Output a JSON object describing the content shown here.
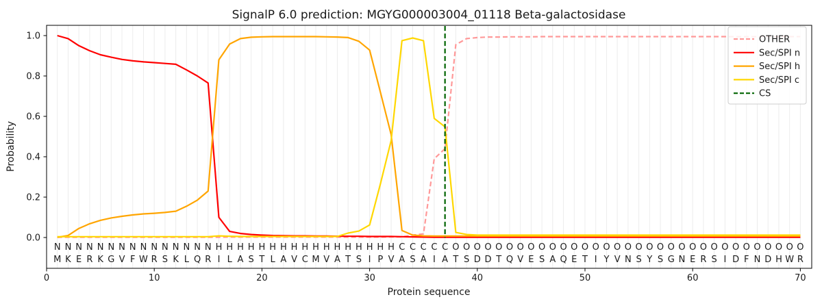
{
  "figure": {
    "title": "SignalP 6.0 prediction: MGYG000003004_01118 Beta-galactosidase",
    "xlabel": "Protein sequence",
    "ylabel": "Probability"
  },
  "axes": {
    "x_ticks": [
      0,
      10,
      20,
      30,
      40,
      50,
      60,
      70
    ],
    "y_ticks": [
      "0.0",
      "0.2",
      "0.4",
      "0.6",
      "0.8",
      "1.0"
    ],
    "grid": "vertical-per-residue"
  },
  "colors": {
    "other": "#ff9999",
    "sec_spi_n": "#ff0000",
    "sec_spi_h": "#ffa500",
    "sec_spi_c": "#ffd700",
    "cs": "#006400",
    "region_o_letter": "#8c8c8c",
    "sequence_letter": "#262626",
    "grid": "#ececec",
    "spine": "#000000",
    "legend_border": "#cccccc"
  },
  "legend": [
    {
      "label": "OTHER",
      "series": "other",
      "dashed": true
    },
    {
      "label": "Sec/SPI n",
      "series": "sec_spi_n",
      "dashed": false
    },
    {
      "label": "Sec/SPI h",
      "series": "sec_spi_h",
      "dashed": false
    },
    {
      "label": "Sec/SPI c",
      "series": "sec_spi_c",
      "dashed": false
    },
    {
      "label": "CS",
      "series": "cs",
      "dashed": true
    }
  ],
  "sequence": "MKERKGVFWRSKLQRILASTLAVCMVATSIPVASAIATSDDTQVESAQETIYVNSYSGNERSIDFNDHWR",
  "region_labels": "NNNNNNNNNNNNNNNHHHHHHHHHHHHHHHHHCCCCCOOOOOOOOOOOOOOOOOOOOOOOOOOOOOOOOO",
  "chart_data": {
    "type": "line",
    "title": "SignalP 6.0 prediction: MGYG000003004_01118 Beta-galactosidase",
    "xlabel": "Protein sequence",
    "ylabel": "Probability",
    "xlim": [
      0,
      71.2
    ],
    "ylim": [
      -0.15,
      1.05
    ],
    "legend_position": "upper right",
    "cs_position": 37,
    "x": [
      1,
      2,
      3,
      4,
      5,
      6,
      7,
      8,
      9,
      10,
      11,
      12,
      13,
      14,
      15,
      16,
      17,
      18,
      19,
      20,
      21,
      22,
      23,
      24,
      25,
      26,
      27,
      28,
      29,
      30,
      31,
      32,
      33,
      34,
      35,
      36,
      37,
      38,
      39,
      40,
      41,
      42,
      43,
      44,
      45,
      46,
      47,
      48,
      49,
      50,
      51,
      52,
      53,
      54,
      55,
      56,
      57,
      58,
      59,
      60,
      61,
      62,
      63,
      64,
      65,
      66,
      67,
      68,
      69,
      70
    ],
    "series": [
      {
        "name": "OTHER",
        "dashed": true,
        "values": [
          0.001,
          0.001,
          0.001,
          0.001,
          0.001,
          0.001,
          0.001,
          0.001,
          0.001,
          0.001,
          0.001,
          0.001,
          0.001,
          0.001,
          0.001,
          0.001,
          0.002,
          0.002,
          0.002,
          0.002,
          0.002,
          0.002,
          0.002,
          0.002,
          0.002,
          0.002,
          0.002,
          0.002,
          0.002,
          0.002,
          0.002,
          0.003,
          0.003,
          0.012,
          0.018,
          0.39,
          0.44,
          0.955,
          0.985,
          0.99,
          0.993,
          0.993,
          0.994,
          0.994,
          0.994,
          0.995,
          0.995,
          0.995,
          0.995,
          0.995,
          0.995,
          0.995,
          0.995,
          0.995,
          0.995,
          0.995,
          0.995,
          0.995,
          0.995,
          0.995,
          0.995,
          0.995,
          0.995,
          0.995,
          0.995,
          0.995,
          0.995,
          0.995,
          0.995,
          0.995
        ]
      },
      {
        "name": "Sec/SPI n",
        "dashed": false,
        "values": [
          1.0,
          0.985,
          0.95,
          0.925,
          0.905,
          0.893,
          0.882,
          0.875,
          0.87,
          0.866,
          0.862,
          0.858,
          0.83,
          0.8,
          0.765,
          0.1,
          0.03,
          0.02,
          0.015,
          0.012,
          0.01,
          0.009,
          0.008,
          0.008,
          0.007,
          0.007,
          0.006,
          0.006,
          0.006,
          0.005,
          0.005,
          0.005,
          0.004,
          0.003,
          0.002,
          0.001,
          0.001,
          0.001,
          0.001,
          0.001,
          0.001,
          0.001,
          0.001,
          0.001,
          0.001,
          0.001,
          0.001,
          0.001,
          0.001,
          0.001,
          0.001,
          0.001,
          0.001,
          0.001,
          0.001,
          0.001,
          0.001,
          0.001,
          0.001,
          0.001,
          0.001,
          0.001,
          0.001,
          0.001,
          0.001,
          0.001,
          0.001,
          0.001,
          0.001,
          0.001
        ]
      },
      {
        "name": "Sec/SPI h",
        "dashed": false,
        "values": [
          0.001,
          0.01,
          0.045,
          0.068,
          0.085,
          0.097,
          0.105,
          0.112,
          0.117,
          0.12,
          0.124,
          0.13,
          0.155,
          0.185,
          0.23,
          0.88,
          0.958,
          0.985,
          0.992,
          0.994,
          0.995,
          0.995,
          0.995,
          0.995,
          0.995,
          0.994,
          0.993,
          0.99,
          0.972,
          0.928,
          0.72,
          0.51,
          0.035,
          0.012,
          0.008,
          0.007,
          0.007,
          0.007,
          0.007,
          0.007,
          0.007,
          0.007,
          0.007,
          0.007,
          0.007,
          0.007,
          0.007,
          0.007,
          0.007,
          0.007,
          0.007,
          0.007,
          0.007,
          0.007,
          0.007,
          0.007,
          0.007,
          0.007,
          0.007,
          0.007,
          0.007,
          0.007,
          0.007,
          0.007,
          0.007,
          0.007,
          0.007,
          0.007,
          0.007,
          0.007
        ]
      },
      {
        "name": "Sec/SPI c",
        "dashed": false,
        "values": [
          0.004,
          0.004,
          0.004,
          0.004,
          0.004,
          0.004,
          0.004,
          0.004,
          0.004,
          0.004,
          0.004,
          0.004,
          0.004,
          0.004,
          0.004,
          0.008,
          0.006,
          0.005,
          0.005,
          0.005,
          0.005,
          0.005,
          0.005,
          0.005,
          0.005,
          0.005,
          0.005,
          0.022,
          0.032,
          0.062,
          0.265,
          0.48,
          0.975,
          0.988,
          0.975,
          0.59,
          0.548,
          0.025,
          0.015,
          0.012,
          0.012,
          0.012,
          0.012,
          0.012,
          0.012,
          0.012,
          0.012,
          0.012,
          0.012,
          0.012,
          0.012,
          0.012,
          0.012,
          0.012,
          0.012,
          0.012,
          0.012,
          0.012,
          0.012,
          0.012,
          0.012,
          0.012,
          0.012,
          0.012,
          0.012,
          0.012,
          0.012,
          0.012,
          0.012,
          0.012
        ]
      }
    ]
  }
}
